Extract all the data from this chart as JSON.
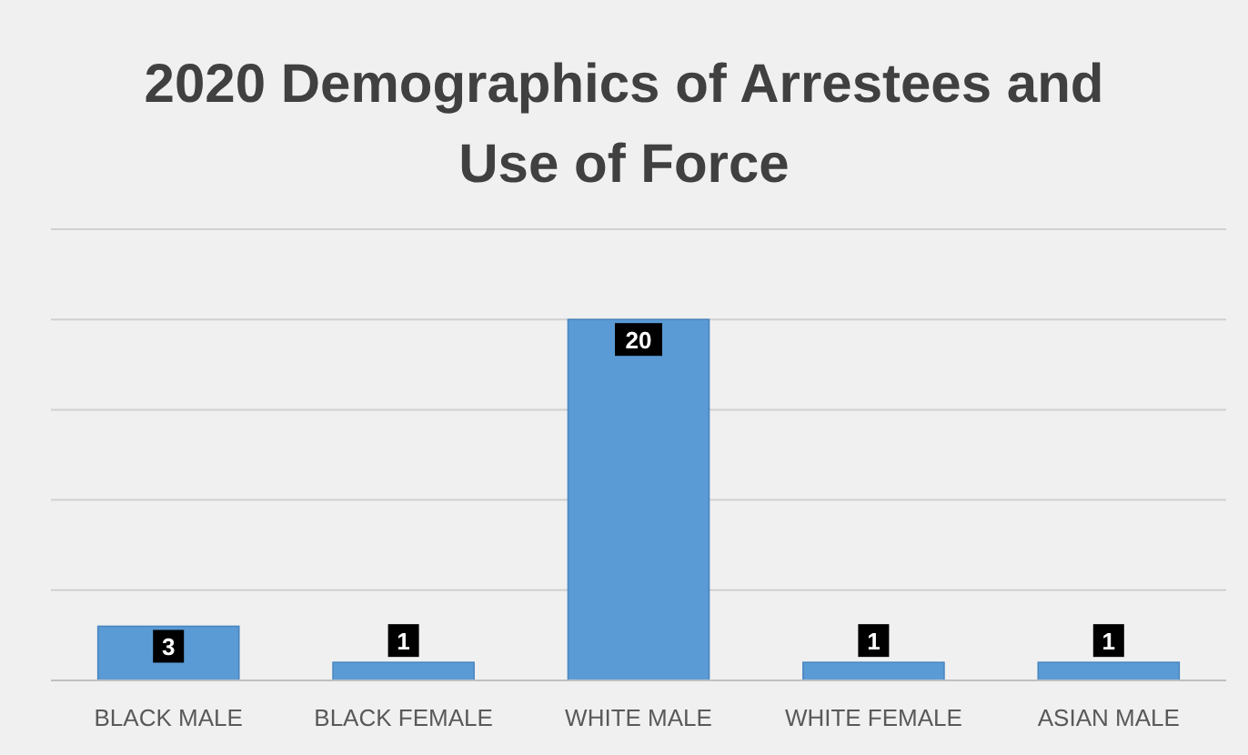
{
  "chart_data": {
    "type": "bar",
    "title": "2020 Demographics of Arrestees and Use of Force",
    "categories": [
      "BLACK MALE",
      "BLACK FEMALE",
      "WHITE MALE",
      "WHITE FEMALE",
      "ASIAN MALE"
    ],
    "values": [
      3,
      1,
      20,
      1,
      1
    ],
    "color": "#5b9bd5",
    "ylim": [
      0,
      25
    ],
    "yticks": [
      {
        "value": 0,
        "label": null
      },
      {
        "value": 5,
        "label": null
      },
      {
        "value": 10,
        "label": null
      },
      {
        "value": 15,
        "label": null
      },
      {
        "value": 20,
        "label": null
      },
      {
        "value": 25,
        "label": null
      }
    ],
    "tick_labels": "x",
    "grid": "y",
    "data_labels": true
  }
}
